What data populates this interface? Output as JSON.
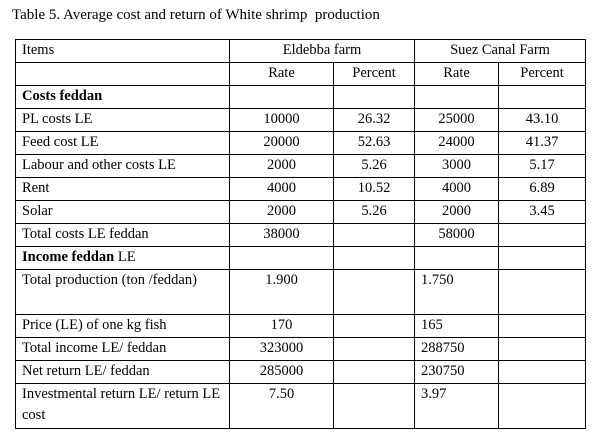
{
  "caption": "Table 5. Average cost and return of White shrimp  production",
  "header": {
    "items": "Items",
    "farm1": "Eldebba farm",
    "farm2": "Suez Canal Farm",
    "rate": "Rate",
    "percent": "Percent"
  },
  "sections": {
    "costs": {
      "bold": "Costs feddan",
      "rest": ""
    },
    "income": {
      "bold": "Income feddan",
      "rest": " LE"
    }
  },
  "cost_rows": [
    {
      "label": "PL costs LE",
      "r1": "10000",
      "p1": "26.32",
      "r2": "25000",
      "p2": "43.10"
    },
    {
      "label": "Feed cost LE",
      "r1": "20000",
      "p1": "52.63",
      "r2": "24000",
      "p2": "41.37"
    },
    {
      "label": "Labour and other costs LE",
      "r1": "2000",
      "p1": "5.26",
      "r2": "3000",
      "p2": "5.17"
    },
    {
      "label": "Rent",
      "r1": "4000",
      "p1": "10.52",
      "r2": "4000",
      "p2": "6.89"
    },
    {
      "label": "Solar",
      "r1": "2000",
      "p1": "5.26",
      "r2": "2000",
      "p2": "3.45"
    },
    {
      "label": "Total costs LE feddan",
      "r1": "38000",
      "p1": "",
      "r2": "58000",
      "p2": ""
    }
  ],
  "income_rows": [
    {
      "label": "Total production (ton /feddan)",
      "r1": "1.900",
      "r2": "1.750"
    },
    {
      "label": "Price (LE) of one kg fish",
      "r1": "170",
      "r2": "165"
    },
    {
      "label": "Total income LE/ feddan",
      "r1": "323000",
      "r2": "288750"
    },
    {
      "label": "Net return LE/ feddan",
      "r1": "285000",
      "r2": "230750"
    },
    {
      "label": "Investmental return LE/ return LE cost",
      "r1": "7.50",
      "r2": "3.97"
    }
  ]
}
